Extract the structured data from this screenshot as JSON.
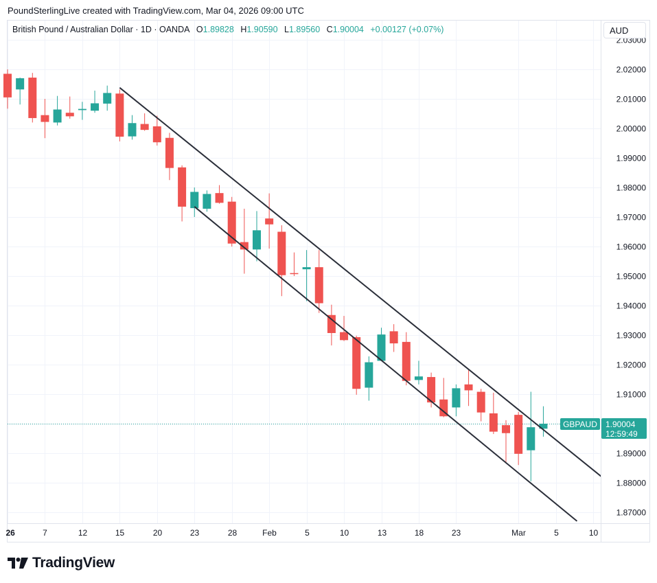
{
  "credit": "PoundSterlingLive created with TradingView.com, Mar 04, 2026 09:00 UTC",
  "header": {
    "instrument": "British Pound / Australian Dollar · 1D · OANDA",
    "o_label": "O",
    "o_value": "1.89828",
    "h_label": "H",
    "h_value": "1.90590",
    "l_label": "L",
    "l_value": "1.89560",
    "c_label": "C",
    "c_value": "1.90004",
    "change": "+0.00127 (+0.07%)"
  },
  "currency": "AUD",
  "price_tag": {
    "symbol": "GBPAUD",
    "price": "1.90004",
    "countdown": "12:59:49"
  },
  "brand": {
    "name": "TradingView"
  },
  "colors": {
    "up": "#26a69a",
    "down": "#ef5350",
    "grid": "#f0f3fa",
    "text": "#131722",
    "trendline": "#2a2e39"
  },
  "chart_data": {
    "type": "candlestick",
    "ylim": [
      1.865,
      2.035
    ],
    "y_ticks": [
      "1.87000",
      "1.88000",
      "1.89000",
      "1.90000",
      "1.91000",
      "1.92000",
      "1.93000",
      "1.94000",
      "1.95000",
      "1.96000",
      "1.97000",
      "1.98000",
      "1.99000",
      "2.00000",
      "2.01000",
      "2.02000",
      "2.03000"
    ],
    "x_ticks": [
      {
        "label": "26",
        "i": 0,
        "bold": true
      },
      {
        "label": "7",
        "i": 3
      },
      {
        "label": "12",
        "i": 6
      },
      {
        "label": "15",
        "i": 9
      },
      {
        "label": "20",
        "i": 12
      },
      {
        "label": "23",
        "i": 15
      },
      {
        "label": "28",
        "i": 18
      },
      {
        "label": "Feb",
        "i": 21
      },
      {
        "label": "5",
        "i": 24
      },
      {
        "label": "10",
        "i": 27
      },
      {
        "label": "13",
        "i": 30
      },
      {
        "label": "18",
        "i": 33
      },
      {
        "label": "23",
        "i": 36
      },
      {
        "label": "Mar",
        "i": 41
      },
      {
        "label": "5",
        "i": 44
      },
      {
        "label": "10",
        "i": 47
      }
    ],
    "candles": [
      {
        "o": 2.0185,
        "h": 2.02,
        "l": 2.0067,
        "c": 2.0105
      },
      {
        "o": 2.0132,
        "h": 2.0172,
        "l": 2.0081,
        "c": 2.017
      },
      {
        "o": 2.0172,
        "h": 2.0188,
        "l": 2.002,
        "c": 2.0035
      },
      {
        "o": 2.0045,
        "h": 2.01,
        "l": 1.9967,
        "c": 2.0022
      },
      {
        "o": 2.002,
        "h": 2.011,
        "l": 2.001,
        "c": 2.0064
      },
      {
        "o": 2.0053,
        "h": 2.0108,
        "l": 2.0033,
        "c": 2.0041
      },
      {
        "o": 2.0062,
        "h": 2.009,
        "l": 2.0029,
        "c": 2.0066
      },
      {
        "o": 2.006,
        "h": 2.0128,
        "l": 2.0053,
        "c": 2.0085
      },
      {
        "o": 2.0084,
        "h": 2.0145,
        "l": 2.006,
        "c": 2.012
      },
      {
        "o": 2.0118,
        "h": 2.0132,
        "l": 1.9956,
        "c": 1.9972
      },
      {
        "o": 1.9973,
        "h": 2.0045,
        "l": 1.9962,
        "c": 2.0018
      },
      {
        "o": 2.0015,
        "h": 2.0051,
        "l": 1.9992,
        "c": 1.9995
      },
      {
        "o": 2.0007,
        "h": 2.0043,
        "l": 1.9942,
        "c": 1.9953
      },
      {
        "o": 1.9968,
        "h": 1.9985,
        "l": 1.9825,
        "c": 1.9866
      },
      {
        "o": 1.9868,
        "h": 1.9875,
        "l": 1.9685,
        "c": 1.9735
      },
      {
        "o": 1.973,
        "h": 1.98,
        "l": 1.97,
        "c": 1.9785
      },
      {
        "o": 1.9728,
        "h": 1.979,
        "l": 1.9718,
        "c": 1.9778
      },
      {
        "o": 1.9781,
        "h": 1.9808,
        "l": 1.9745,
        "c": 1.9748
      },
      {
        "o": 1.9752,
        "h": 1.9768,
        "l": 1.96,
        "c": 1.961
      },
      {
        "o": 1.9615,
        "h": 1.9728,
        "l": 1.9508,
        "c": 1.959
      },
      {
        "o": 1.959,
        "h": 1.972,
        "l": 1.955,
        "c": 1.9655
      },
      {
        "o": 1.9695,
        "h": 1.978,
        "l": 1.9593,
        "c": 1.9675
      },
      {
        "o": 1.965,
        "h": 1.9672,
        "l": 1.9432,
        "c": 1.9503
      },
      {
        "o": 1.951,
        "h": 1.958,
        "l": 1.95,
        "c": 1.9508
      },
      {
        "o": 1.9523,
        "h": 1.9588,
        "l": 1.9415,
        "c": 1.953
      },
      {
        "o": 1.953,
        "h": 1.9588,
        "l": 1.9375,
        "c": 1.9408
      },
      {
        "o": 1.9368,
        "h": 1.9403,
        "l": 1.9265,
        "c": 1.9307
      },
      {
        "o": 1.931,
        "h": 1.9365,
        "l": 1.928,
        "c": 1.9283
      },
      {
        "o": 1.9293,
        "h": 1.9298,
        "l": 1.9098,
        "c": 1.9118
      },
      {
        "o": 1.9122,
        "h": 1.9228,
        "l": 1.9078,
        "c": 1.9208
      },
      {
        "o": 1.9213,
        "h": 1.9325,
        "l": 1.9213,
        "c": 1.9302
      },
      {
        "o": 1.9313,
        "h": 1.9337,
        "l": 1.9243,
        "c": 1.9272
      },
      {
        "o": 1.9277,
        "h": 1.931,
        "l": 1.913,
        "c": 1.9145
      },
      {
        "o": 1.9148,
        "h": 1.9213,
        "l": 1.9133,
        "c": 1.916
      },
      {
        "o": 1.9158,
        "h": 1.9173,
        "l": 1.9055,
        "c": 1.9072
      },
      {
        "o": 1.9082,
        "h": 1.9155,
        "l": 1.9022,
        "c": 1.9025
      },
      {
        "o": 1.9055,
        "h": 1.9133,
        "l": 1.9025,
        "c": 1.912
      },
      {
        "o": 1.9133,
        "h": 1.9185,
        "l": 1.906,
        "c": 1.9113
      },
      {
        "o": 1.9108,
        "h": 1.9118,
        "l": 1.9008,
        "c": 1.9038
      },
      {
        "o": 1.9035,
        "h": 1.9105,
        "l": 1.8965,
        "c": 1.8973
      },
      {
        "o": 1.8995,
        "h": 1.9012,
        "l": 1.8865,
        "c": 1.8968
      },
      {
        "o": 1.903,
        "h": 1.904,
        "l": 1.886,
        "c": 1.8898
      },
      {
        "o": 1.891,
        "h": 1.9108,
        "l": 1.8805,
        "c": 1.8988
      },
      {
        "o": 1.8983,
        "h": 1.9059,
        "l": 1.8956,
        "c": 1.9
      }
    ],
    "last_price": 1.90004,
    "trendlines": [
      {
        "from": {
          "i": 9,
          "y": 2.0138
        },
        "to": {
          "i": 48.3,
          "y": 1.8799
        }
      },
      {
        "from": {
          "i": 15,
          "y": 1.9735
        },
        "to": {
          "i": 45.7,
          "y": 1.867
        }
      }
    ]
  }
}
